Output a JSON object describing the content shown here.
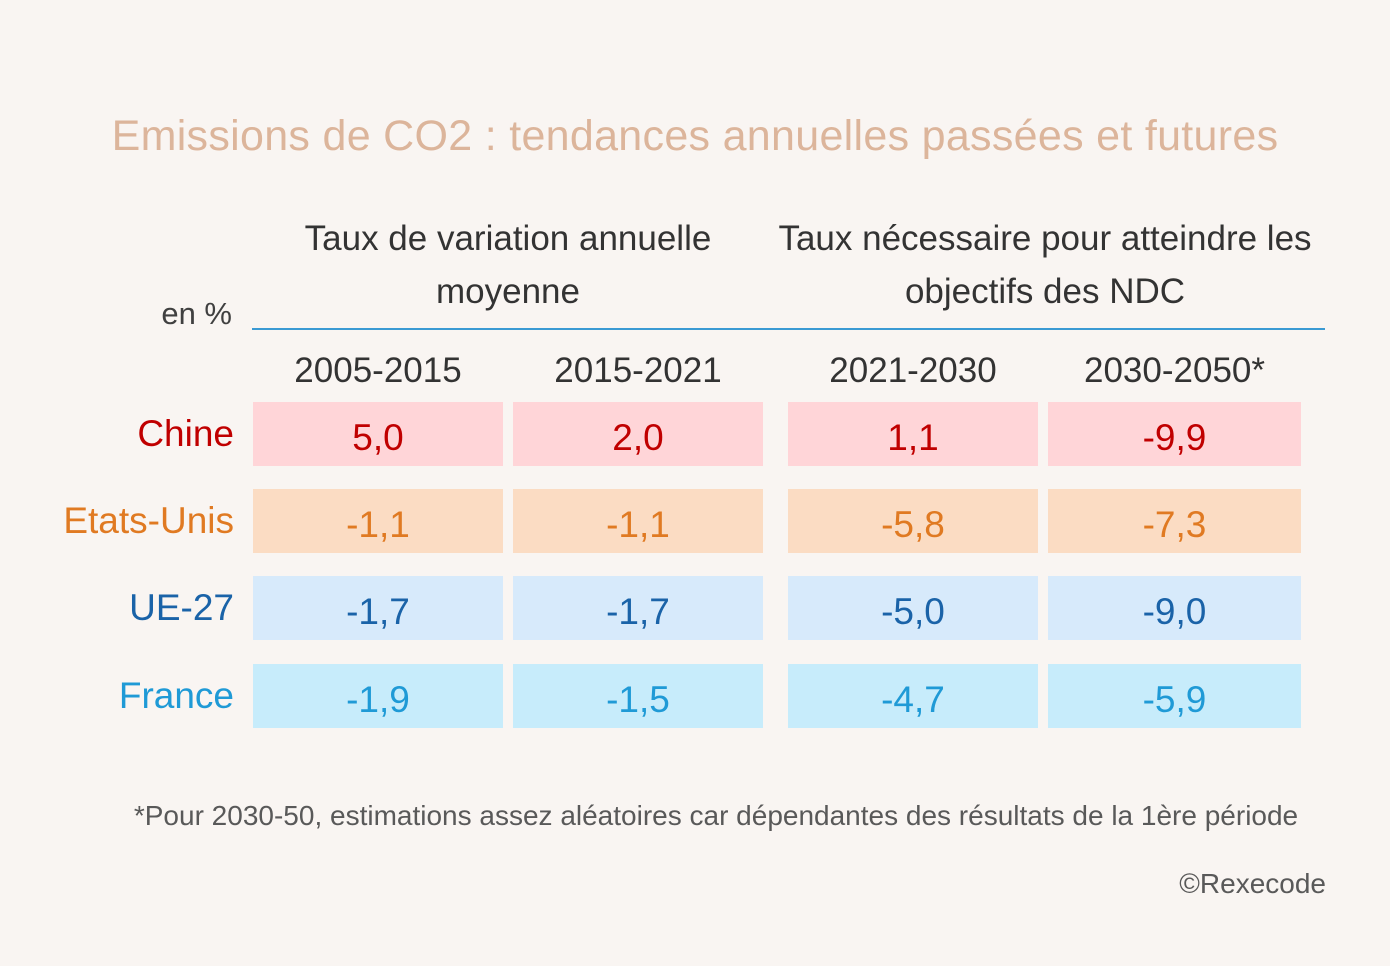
{
  "chart_data": {
    "type": "table",
    "title": "Emissions de CO2 : tendances annuelles passées et futures",
    "unit_label": "en %",
    "groups": [
      {
        "label": "Taux de variation annuelle moyenne",
        "columns": [
          "2005-2015",
          "2015-2021"
        ]
      },
      {
        "label": "Taux nécessaire pour atteindre les objectifs des NDC",
        "columns": [
          "2021-2030",
          "2030-2050*"
        ]
      }
    ],
    "columns": [
      "2005-2015",
      "2015-2021",
      "2021-2030",
      "2030-2050*"
    ],
    "rows": [
      {
        "label": "Chine",
        "values": [
          "5,0",
          "2,0",
          "1,1",
          "-9,9"
        ],
        "text_color": "#c00000",
        "cell_color": "#ffd5d8"
      },
      {
        "label": "Etats-Unis",
        "values": [
          "-1,1",
          "-1,1",
          "-5,8",
          "-7,3"
        ],
        "text_color": "#e07a22",
        "cell_color": "#fbdcc3"
      },
      {
        "label": "UE-27",
        "values": [
          "-1,7",
          "-1,7",
          "-5,0",
          "-9,0"
        ],
        "text_color": "#1a63a8",
        "cell_color": "#d7eafb"
      },
      {
        "label": "France",
        "values": [
          "-1,9",
          "-1,5",
          "-4,7",
          "-5,9"
        ],
        "text_color": "#1f9ad6",
        "cell_color": "#c7ecfb"
      }
    ],
    "footnote": "*Pour 2030-50, estimations assez aléatoires car dépendantes des résultats de la 1ère période",
    "source": "©Rexecode"
  }
}
